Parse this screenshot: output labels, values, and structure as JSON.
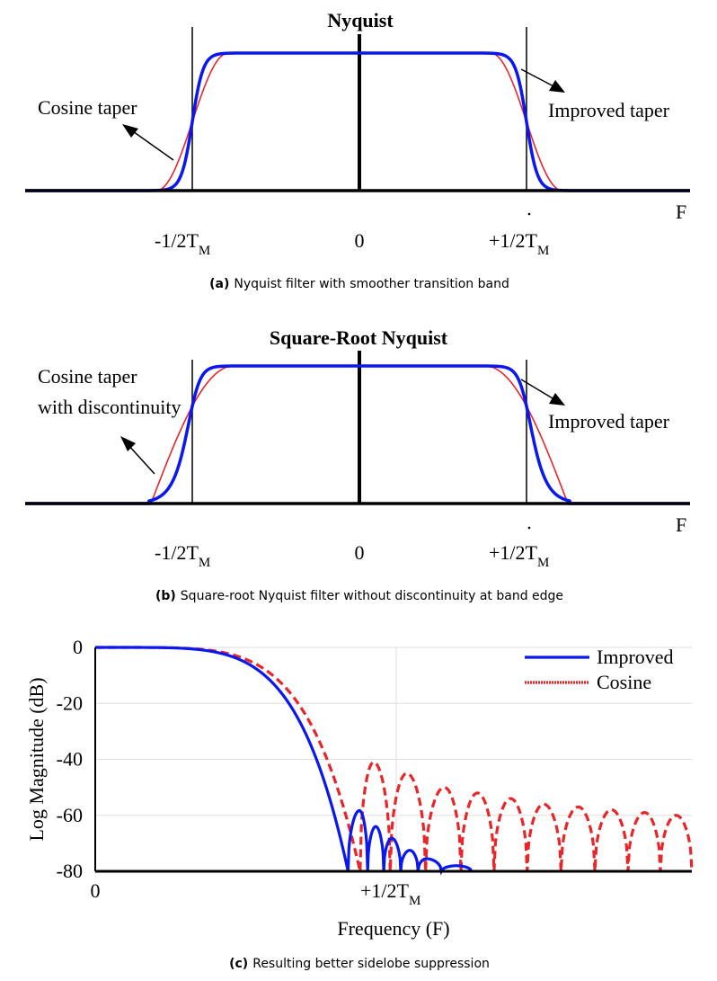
{
  "colors": {
    "improved": "#0a17f0",
    "cosine": "#e8262a",
    "axis": "#000000",
    "grid": "#dddddd"
  },
  "panel_a": {
    "title": "Nyquist",
    "left_label": "Cosine taper",
    "right_label": "Improved taper",
    "f_label": "F",
    "ticks": {
      "neg_main": "-1/2T",
      "neg_sub": "M",
      "zero": "0",
      "pos_main": "+1/2T",
      "pos_sub": "M"
    },
    "caption_tag": "(a)",
    "caption": "Nyquist filter with smoother transition band"
  },
  "panel_b": {
    "title": "Square-Root Nyquist",
    "left_label_1": "Cosine taper",
    "left_label_2": "with discontinuity",
    "right_label": "Improved taper",
    "f_label": "F",
    "ticks": {
      "neg_main": "-1/2T",
      "neg_sub": "M",
      "zero": "0",
      "pos_main": "+1/2T",
      "pos_sub": "M"
    },
    "caption_tag": "(b)",
    "caption": "Square-root Nyquist filter without discontinuity at band edge"
  },
  "panel_c": {
    "caption_tag": "(c)",
    "caption": "Resulting better sidelobe suppression"
  },
  "chart_data": [
    {
      "type": "line",
      "title": "Nyquist",
      "xlabel": "F",
      "x_tick_labels": [
        "-1/2T_M",
        "0",
        "+1/2T_M"
      ],
      "series": [
        {
          "name": "Improved taper",
          "color": "#0a17f0",
          "shape": "smooth transition centered at ±1/2T_M, narrower"
        },
        {
          "name": "Cosine taper",
          "color": "#e8262a",
          "shape": "raised-cosine transition centered at ±1/2T_M, wider"
        }
      ]
    },
    {
      "type": "line",
      "title": "Square-Root Nyquist",
      "xlabel": "F",
      "x_tick_labels": [
        "-1/2T_M",
        "0",
        "+1/2T_M"
      ],
      "series": [
        {
          "name": "Improved taper",
          "color": "#0a17f0"
        },
        {
          "name": "Cosine taper with discontinuity",
          "color": "#e8262a"
        }
      ]
    },
    {
      "type": "line",
      "xlabel": "Frequency (F)",
      "ylabel": "Log Magnitude (dB)",
      "ylim": [
        -80,
        0
      ],
      "y_ticks": [
        0,
        -20,
        -40,
        -60,
        -80
      ],
      "y_tick_labels": [
        "0",
        "-20",
        "-40",
        "-60",
        "-80"
      ],
      "x_tick_labels": [
        "0",
        "+1/2T_M"
      ],
      "legend": "top-right",
      "grid": true,
      "series": [
        {
          "name": "Improved",
          "color": "#0a17f0",
          "style": "solid",
          "points": [
            [
              0,
              0
            ],
            [
              0.1,
              0
            ],
            [
              0.2,
              0
            ],
            [
              0.3,
              0
            ],
            [
              0.4,
              -0.3
            ],
            [
              0.5,
              -1.8
            ],
            [
              0.55,
              -3.7
            ],
            [
              0.6,
              -7.4
            ],
            [
              0.65,
              -13.4
            ],
            [
              0.7,
              -22.7
            ],
            [
              0.75,
              -35.6
            ],
            [
              0.8,
              -51.9
            ],
            [
              0.84,
              -66
            ]
          ],
          "sidelobe_peaks": [
            [
              0.878,
              -58.3
            ],
            [
              0.932,
              -64
            ],
            [
              0.985,
              -68.2
            ],
            [
              1.045,
              -72.5
            ],
            [
              1.1,
              -75.5
            ],
            [
              1.2,
              -78
            ]
          ]
        },
        {
          "name": "Cosine",
          "color": "#e8262a",
          "style": "dashed",
          "points": [
            [
              0,
              0
            ],
            [
              0.1,
              0
            ],
            [
              0.2,
              0
            ],
            [
              0.3,
              0
            ],
            [
              0.4,
              -0.2
            ],
            [
              0.5,
              -1
            ],
            [
              0.55,
              -2.6
            ],
            [
              0.6,
              -5.3
            ],
            [
              0.65,
              -9.9
            ],
            [
              0.7,
              -16.2
            ],
            [
              0.75,
              -24.1
            ],
            [
              0.8,
              -33.6
            ],
            [
              0.85,
              -44.5
            ],
            [
              0.88,
              -52
            ]
          ],
          "sidelobe_peaks": [
            [
              0.925,
              -41
            ],
            [
              1.035,
              -45
            ],
            [
              1.16,
              -50
            ],
            [
              1.27,
              -52
            ],
            [
              1.38,
              -54
            ],
            [
              1.49,
              -56
            ],
            [
              1.605,
              -57
            ],
            [
              1.715,
              -58
            ],
            [
              1.825,
              -59
            ],
            [
              1.93,
              -60
            ]
          ]
        }
      ],
      "legend_entries": [
        "Improved",
        "Cosine"
      ]
    }
  ]
}
